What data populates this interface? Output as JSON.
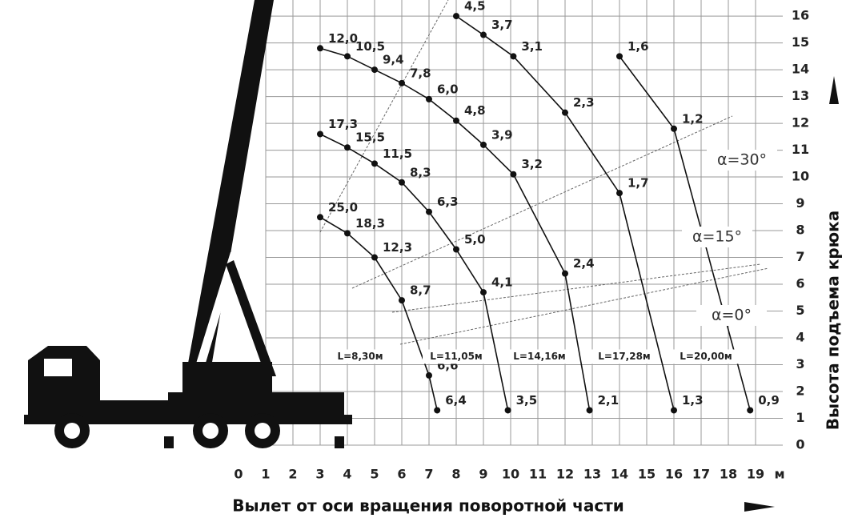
{
  "chart_data": {
    "type": "line",
    "x_label": "Вылет от оси вращения поворотной части",
    "y_label": "Высота подъема крюка",
    "x_unit": "м",
    "xlim": [
      0,
      20
    ],
    "ylim": [
      0,
      16.6
    ],
    "xticks": [
      0,
      1,
      2,
      3,
      4,
      5,
      6,
      7,
      8,
      9,
      10,
      11,
      12,
      13,
      14,
      15,
      16,
      17,
      18,
      19
    ],
    "yticks": [
      0,
      1,
      2,
      3,
      4,
      5,
      6,
      7,
      8,
      9,
      10,
      11,
      12,
      13,
      14,
      15,
      16
    ],
    "grid": true,
    "color": "#111111",
    "annotations": [
      "α=30°",
      "α=15°",
      "α=0°"
    ],
    "series": [
      {
        "name": "L=8,30м",
        "x": [
          3,
          4,
          5,
          6,
          7,
          7.3
        ],
        "values": [
          8.5,
          7.9,
          7.0,
          5.4,
          2.6,
          1.3
        ],
        "loads": [
          25.0,
          18.3,
          12.3,
          8.7,
          6.6,
          6.4
        ],
        "load_labels": [
          "25,0",
          "18,3",
          "12,3",
          "8,7",
          "6,6",
          "6,4"
        ]
      },
      {
        "name": "L=11,05м",
        "x": [
          3,
          4,
          5,
          6,
          7,
          8,
          9,
          9.9
        ],
        "values": [
          11.6,
          11.1,
          10.5,
          9.8,
          8.7,
          7.3,
          5.7,
          1.3
        ],
        "loads": [
          17.3,
          15.5,
          11.5,
          8.3,
          6.3,
          5.0,
          4.1,
          3.5
        ],
        "load_labels": [
          "17,3",
          "15,5",
          "11,5",
          "8,3",
          "6,3",
          "5,0",
          "4,1",
          "3,5"
        ]
      },
      {
        "name": "L=14,16м",
        "x": [
          3,
          4,
          5,
          6,
          7,
          8,
          9,
          10.1,
          12,
          12.9
        ],
        "values": [
          14.8,
          14.5,
          14.0,
          13.5,
          12.9,
          12.1,
          11.2,
          10.1,
          6.4,
          1.3
        ],
        "loads": [
          12.0,
          10.5,
          9.4,
          7.8,
          6.0,
          4.8,
          3.9,
          3.2,
          2.4,
          2.1
        ],
        "load_labels": [
          "12,0",
          "10,5",
          "9,4",
          "7,8",
          "6,0",
          "4,8",
          "3,9",
          "3,2",
          "2,4",
          "2,1"
        ]
      },
      {
        "name": "L=17,28м",
        "x": [
          8,
          9,
          10.1,
          12,
          14,
          16
        ],
        "values": [
          16.0,
          15.3,
          14.5,
          12.4,
          9.4,
          1.3
        ],
        "loads": [
          4.5,
          3.7,
          3.1,
          2.3,
          1.7,
          1.3
        ],
        "load_labels": [
          "4,5",
          "3,7",
          "3,1",
          "2,3",
          "1,7",
          "1,3"
        ]
      },
      {
        "name": "L=20,00м",
        "x": [
          14,
          16,
          18.8
        ],
        "values": [
          14.5,
          11.8,
          1.3
        ],
        "loads": [
          1.6,
          1.2,
          0.9
        ],
        "load_labels": [
          "1,6",
          "1,2",
          "0,9"
        ]
      }
    ]
  }
}
